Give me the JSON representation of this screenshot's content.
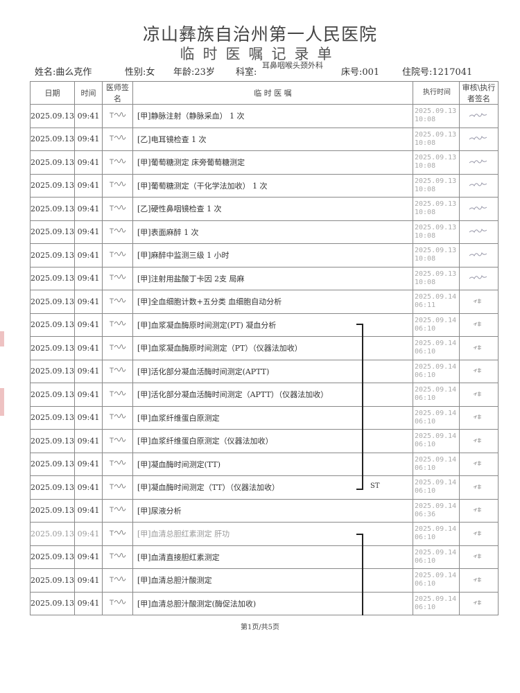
{
  "header": {
    "hospital": "凉山彝族自治州第一人民医院",
    "title": "临时医嘱记录单"
  },
  "patient": {
    "name": "姓名:曲么克作",
    "sex": "性别:女",
    "age": "年龄:23岁",
    "dept_label": "科室:",
    "dept": "耳鼻咽喉头颈外科",
    "bed": "床号:001",
    "admission": "住院号:1217041"
  },
  "columns": {
    "date": "日期",
    "time": "时间",
    "doctor": "医师签名",
    "order": "临 时 医 嘱",
    "exec": "执行时间",
    "sign": "审核\\执行者签名"
  },
  "rows": [
    {
      "date": "2025.09.13",
      "time": "09:41",
      "order": "[甲]静脉注射（静脉采血） 1 次",
      "exec": "2025.09.13 10:08"
    },
    {
      "date": "2025.09.13",
      "time": "09:41",
      "order": "[乙]电耳镜检查 1 次",
      "exec": "2025.09.13 10:08"
    },
    {
      "date": "2025.09.13",
      "time": "09:41",
      "order": "[甲]葡萄糖测定 床旁葡萄糖测定",
      "exec": "2025.09.13 10:08"
    },
    {
      "date": "2025.09.13",
      "time": "09:41",
      "order": "[甲]葡萄糖测定（干化学法加收） 1 次",
      "exec": "2025.09.13 10:08"
    },
    {
      "date": "2025.09.13",
      "time": "09:41",
      "order": "[乙]硬性鼻咽镜检查 1 次",
      "exec": "2025.09.13 10:08"
    },
    {
      "date": "2025.09.13",
      "time": "09:41",
      "order": "[甲]表面麻醉 1 次",
      "exec": "2025.09.13 10:08"
    },
    {
      "date": "2025.09.13",
      "time": "09:41",
      "order": "[甲]麻醉中监测三级 1 小时",
      "exec": "2025.09.13 10:08"
    },
    {
      "date": "2025.09.13",
      "time": "09:41",
      "order": "[甲]注射用盐酸丁卡因 2支 局麻",
      "exec": "2025.09.13 10:08"
    },
    {
      "date": "2025.09.13",
      "time": "09:41",
      "order": "[甲]全血细胞计数+五分类 血细胞自动分析",
      "exec": "2025.09.14 06:11"
    },
    {
      "date": "2025.09.13",
      "time": "09:41",
      "order": "[甲]血浆凝血酶原时间测定(PT) 凝血分析",
      "exec": "2025.09.14 06:10"
    },
    {
      "date": "2025.09.13",
      "time": "09:41",
      "order": "[甲]血浆凝血酶原时间测定（PT）（仪器法加收）",
      "exec": "2025.09.14 06:10"
    },
    {
      "date": "2025.09.13",
      "time": "09:41",
      "order": "[甲]活化部分凝血活酶时间测定(APTT)",
      "exec": "2025.09.14 06:10"
    },
    {
      "date": "2025.09.13",
      "time": "09:41",
      "order": "[甲]活化部分凝血活酶时间测定（APTT）（仪器法加收）",
      "exec": "2025.09.14 06:10"
    },
    {
      "date": "2025.09.13",
      "time": "09:41",
      "order": "[甲]血浆纤维蛋白原测定",
      "exec": "2025.09.14 06:10"
    },
    {
      "date": "2025.09.13",
      "time": "09:41",
      "order": "[甲]血浆纤维蛋白原测定（仪器法加收）",
      "exec": "2025.09.14 06:10"
    },
    {
      "date": "2025.09.13",
      "time": "09:41",
      "order": "[甲]凝血酶时间测定(TT)",
      "exec": "2025.09.14 06:10"
    },
    {
      "date": "2025.09.13",
      "time": "09:41",
      "order": "[甲]凝血酶时间测定（TT）（仪器法加收）",
      "exec": "2025.09.14 06:10"
    },
    {
      "date": "2025.09.13",
      "time": "09:41",
      "order": "[甲]尿液分析",
      "exec": "2025.09.14 06:36"
    },
    {
      "date": "2025.09.13",
      "time": "09:41",
      "order": "[甲]血清总胆红素测定 肝功",
      "exec": "2025.09.14 06:10",
      "faint": true
    },
    {
      "date": "2025.09.13",
      "time": "09:41",
      "order": "[甲]血清直接胆红素测定",
      "exec": "2025.09.14 06:10"
    },
    {
      "date": "2025.09.13",
      "time": "09:41",
      "order": "[甲]血清总胆汁酸测定",
      "exec": "2025.09.14 06:10"
    },
    {
      "date": "2025.09.13",
      "time": "09:41",
      "order": "[甲]血清总胆汁酸测定(酶促法加收)",
      "exec": "2025.09.14 06:10"
    }
  ],
  "group_label": "ST",
  "footer": "第1页/共5页"
}
